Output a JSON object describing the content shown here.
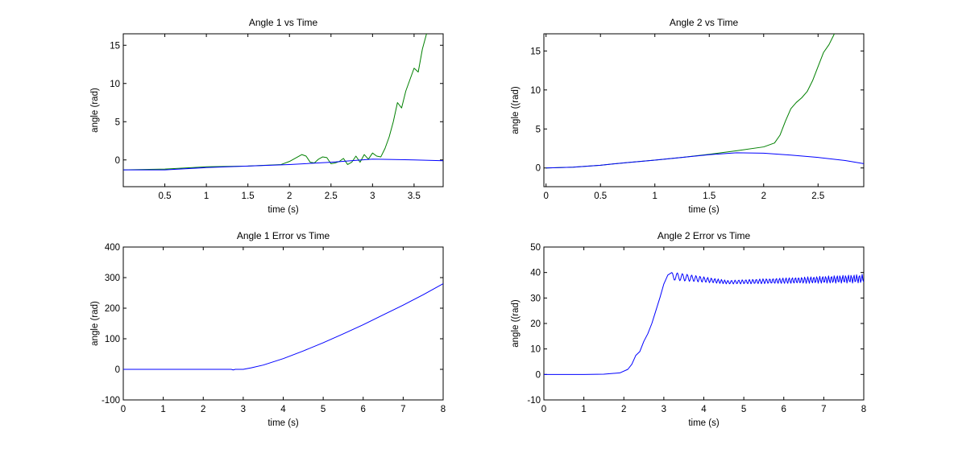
{
  "figure": {
    "background": "#ffffff"
  },
  "chart_data": [
    {
      "type": "line",
      "title": "Angle 1 vs Time",
      "xlabel": "time (s)",
      "ylabel": "angle (rad)",
      "xlim": [
        0,
        3.85
      ],
      "ylim": [
        -3.5,
        16.5
      ],
      "xticks": [
        0.5,
        1,
        1.5,
        2,
        2.5,
        3,
        3.5
      ],
      "xtick_labels": [
        "0.5",
        "1",
        "1.5",
        "2",
        "2.5",
        "3",
        "3.5"
      ],
      "yticks": [
        0,
        5,
        10,
        15
      ],
      "ytick_labels": [
        "0",
        "5",
        "10",
        "15"
      ],
      "grid": false,
      "series": [
        {
          "color": "#008000",
          "x": [
            0,
            0.5,
            1.0,
            1.5,
            1.9,
            2.0,
            2.1,
            2.15,
            2.2,
            2.25,
            2.3,
            2.35,
            2.4,
            2.45,
            2.5,
            2.55,
            2.6,
            2.65,
            2.7,
            2.75,
            2.8,
            2.85,
            2.9,
            2.95,
            3.0,
            3.05,
            3.1,
            3.15,
            3.2,
            3.25,
            3.3,
            3.35,
            3.4,
            3.45,
            3.5,
            3.55,
            3.6,
            3.65
          ],
          "y": [
            -1.3,
            -1.2,
            -0.9,
            -0.8,
            -0.6,
            -0.2,
            0.4,
            0.7,
            0.5,
            -0.3,
            -0.4,
            0.1,
            0.4,
            0.3,
            -0.5,
            -0.4,
            -0.2,
            0.2,
            -0.6,
            -0.3,
            0.5,
            -0.3,
            0.7,
            0.1,
            0.9,
            0.5,
            0.4,
            1.5,
            3.0,
            5.0,
            7.5,
            6.8,
            9.0,
            10.5,
            12.0,
            11.5,
            14.5,
            16.5
          ]
        },
        {
          "color": "#0000ff",
          "x": [
            0,
            0.5,
            1.0,
            1.5,
            2.0,
            2.5,
            3.0,
            3.5,
            3.85
          ],
          "y": [
            -1.3,
            -1.3,
            -1.0,
            -0.8,
            -0.6,
            -0.3,
            0.1,
            0.0,
            -0.1
          ]
        }
      ]
    },
    {
      "type": "line",
      "title": "Angle 2 vs Time",
      "xlabel": "time (s)",
      "ylabel": "angle ((rad)",
      "xlim": [
        -0.02,
        2.92
      ],
      "ylim": [
        -2.4,
        17.2
      ],
      "xticks": [
        0,
        0.5,
        1,
        1.5,
        2,
        2.5
      ],
      "xtick_labels": [
        "0",
        "0.5",
        "1",
        "1.5",
        "2",
        "2.5"
      ],
      "yticks": [
        0,
        5,
        10,
        15
      ],
      "ytick_labels": [
        "0",
        "5",
        "10",
        "15"
      ],
      "grid": false,
      "series": [
        {
          "color": "#008000",
          "x": [
            0,
            0.25,
            0.5,
            0.75,
            1.0,
            1.25,
            1.5,
            1.75,
            2.0,
            2.1,
            2.15,
            2.2,
            2.25,
            2.3,
            2.35,
            2.4,
            2.45,
            2.5,
            2.55,
            2.6,
            2.65
          ],
          "y": [
            0,
            0.1,
            0.35,
            0.7,
            1.0,
            1.35,
            1.75,
            2.2,
            2.7,
            3.2,
            4.2,
            6.0,
            7.6,
            8.4,
            9.0,
            9.8,
            11.2,
            13.0,
            14.8,
            15.8,
            17.2
          ]
        },
        {
          "color": "#0000ff",
          "x": [
            0,
            0.25,
            0.5,
            0.75,
            1.0,
            1.25,
            1.5,
            1.75,
            2.0,
            2.25,
            2.5,
            2.75,
            2.92
          ],
          "y": [
            0,
            0.1,
            0.35,
            0.7,
            1.0,
            1.35,
            1.7,
            1.95,
            1.9,
            1.65,
            1.35,
            0.95,
            0.55
          ]
        }
      ]
    },
    {
      "type": "line",
      "title": "Angle 1 Error vs Time",
      "xlabel": "time (s)",
      "ylabel": "angle (rad)",
      "xlim": [
        0,
        8
      ],
      "ylim": [
        -100,
        400
      ],
      "xticks": [
        0,
        1,
        2,
        3,
        4,
        5,
        6,
        7,
        8
      ],
      "xtick_labels": [
        "0",
        "1",
        "2",
        "3",
        "4",
        "5",
        "6",
        "7",
        "8"
      ],
      "yticks": [
        -100,
        0,
        100,
        200,
        300,
        400
      ],
      "ytick_labels": [
        "-100",
        "0",
        "100",
        "200",
        "300",
        "400"
      ],
      "grid": false,
      "series": [
        {
          "color": "#0000ff",
          "x": [
            0,
            1,
            2,
            2.7,
            2.75,
            2.8,
            3.0,
            3.2,
            3.5,
            4.0,
            4.5,
            5.0,
            5.5,
            6.0,
            6.5,
            7.0,
            7.5,
            8.0
          ],
          "y": [
            0,
            0,
            0,
            0,
            -2,
            0,
            0,
            5,
            14,
            35,
            60,
            87,
            116,
            146,
            178,
            210,
            244,
            280
          ]
        }
      ]
    },
    {
      "type": "line",
      "title": "Angle 2 Error vs Time",
      "xlabel": "time (s)",
      "ylabel": "angle ((rad)",
      "xlim": [
        0,
        8
      ],
      "ylim": [
        -10,
        50
      ],
      "xticks": [
        0,
        1,
        2,
        3,
        4,
        5,
        6,
        7,
        8
      ],
      "xtick_labels": [
        "0",
        "1",
        "2",
        "3",
        "4",
        "5",
        "6",
        "7",
        "8"
      ],
      "yticks": [
        -10,
        0,
        10,
        20,
        30,
        40,
        50
      ],
      "ytick_labels": [
        "-10",
        "0",
        "10",
        "20",
        "30",
        "40",
        "50"
      ],
      "grid": false,
      "series": [
        {
          "color": "#0000ff",
          "x": [
            0,
            1.0,
            1.5,
            1.9,
            2.1,
            2.2,
            2.3,
            2.4,
            2.5,
            2.6,
            2.7,
            2.8,
            2.9,
            3.0,
            3.1,
            3.2
          ],
          "y": [
            0,
            0,
            0.1,
            0.6,
            2.0,
            4.0,
            7.5,
            9.0,
            13.0,
            16.0,
            20.0,
            25.0,
            30.0,
            35.5,
            39.0,
            40.0
          ]
        }
      ]
    }
  ]
}
